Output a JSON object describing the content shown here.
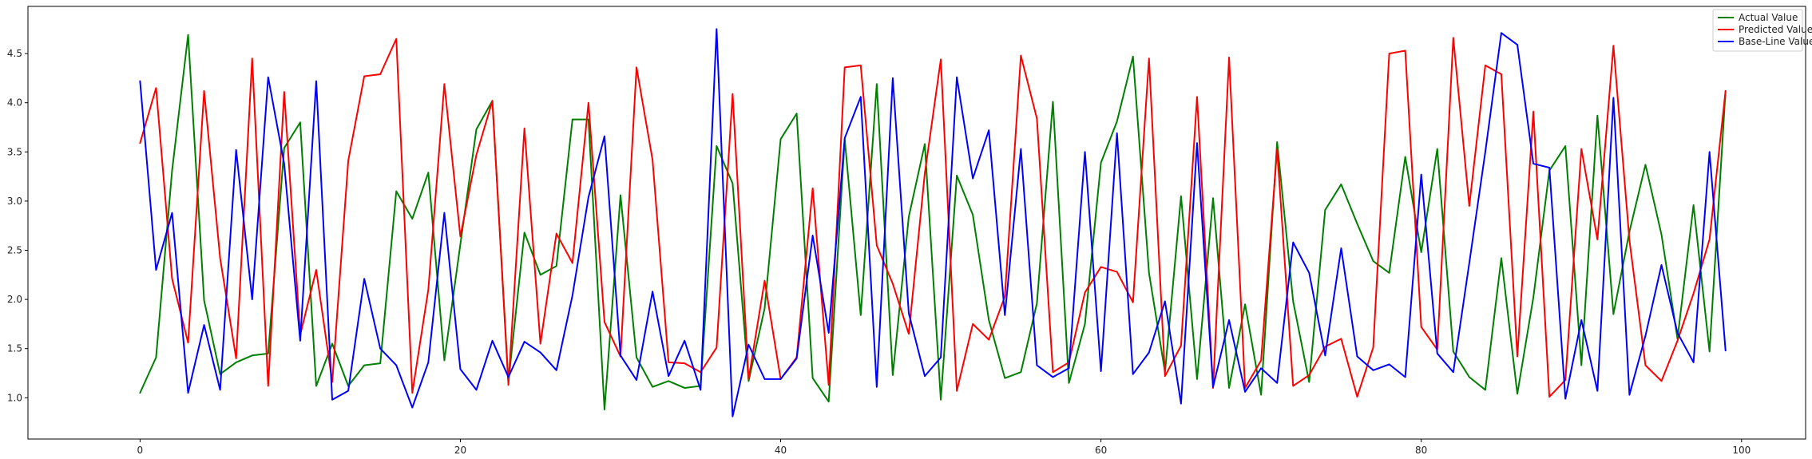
{
  "chart_data": {
    "type": "line",
    "xlim": [
      -7,
      104
    ],
    "ylim": [
      0.58,
      4.98
    ],
    "xticks": [
      0,
      20,
      40,
      60,
      80,
      100
    ],
    "yticks": [
      1.0,
      1.5,
      2.0,
      2.5,
      3.0,
      3.5,
      4.0,
      4.5
    ],
    "grid": false,
    "legend_position": "top-right",
    "series": [
      {
        "name": "Actual Value",
        "color": "#008000",
        "values": [
          1.05,
          1.41,
          3.31,
          4.69,
          1.99,
          1.24,
          1.36,
          1.43,
          1.45,
          3.54,
          3.8,
          1.12,
          1.55,
          1.12,
          1.33,
          1.35,
          3.1,
          2.82,
          3.29,
          1.38,
          2.56,
          3.73,
          4.02,
          1.16,
          2.68,
          2.25,
          2.34,
          3.83,
          3.83,
          0.88,
          3.06,
          1.41,
          1.11,
          1.17,
          1.1,
          1.12,
          3.56,
          3.18,
          1.17,
          1.91,
          3.63,
          3.89,
          1.2,
          0.96,
          3.63,
          1.84,
          4.19,
          1.23,
          2.84,
          3.58,
          0.98,
          3.26,
          2.86,
          1.79,
          1.2,
          1.26,
          1.96,
          4.01,
          1.15,
          1.75,
          3.39,
          3.81,
          4.47,
          2.27,
          1.26,
          3.05,
          1.19,
          3.03,
          1.1,
          1.95,
          1.03,
          3.6,
          1.98,
          1.16,
          2.91,
          3.17,
          2.77,
          2.39,
          2.27,
          3.45,
          2.48,
          3.53,
          1.47,
          1.21,
          1.08,
          2.42,
          1.04,
          2.02,
          3.31,
          3.56,
          1.33,
          3.87,
          1.85,
          2.69,
          3.37,
          2.66,
          1.6,
          2.96,
          1.47,
          4.12
        ]
      },
      {
        "name": "Predicted Value",
        "color": "#ff0000",
        "values": [
          3.59,
          4.15,
          2.21,
          1.56,
          4.12,
          2.42,
          1.4,
          4.45,
          1.12,
          4.11,
          1.64,
          2.3,
          1.16,
          3.41,
          4.27,
          4.29,
          4.65,
          1.05,
          2.1,
          4.19,
          2.64,
          3.47,
          4.02,
          1.13,
          3.74,
          1.55,
          2.67,
          2.37,
          4.0,
          1.77,
          1.42,
          4.36,
          3.42,
          1.36,
          1.35,
          1.26,
          1.51,
          4.09,
          1.19,
          2.19,
          1.19,
          1.41,
          3.13,
          1.13,
          4.36,
          4.38,
          2.55,
          2.16,
          1.65,
          3.28,
          4.44,
          1.07,
          1.75,
          1.59,
          2.03,
          4.48,
          3.84,
          1.26,
          1.36,
          2.07,
          2.33,
          2.28,
          1.97,
          4.45,
          1.22,
          1.53,
          4.06,
          1.1,
          4.46,
          1.1,
          1.38,
          3.53,
          1.12,
          1.23,
          1.52,
          1.6,
          1.01,
          1.51,
          4.5,
          4.53,
          1.72,
          1.49,
          4.66,
          2.95,
          4.38,
          4.29,
          1.42,
          3.91,
          1.01,
          1.18,
          3.53,
          2.61,
          4.58,
          2.6,
          1.33,
          1.17,
          1.58,
          2.06,
          2.61,
          4.12
        ]
      },
      {
        "name": "Base-Line Value",
        "color": "#0000ff",
        "values": [
          4.22,
          2.3,
          2.88,
          1.05,
          1.74,
          1.08,
          3.52,
          2.0,
          4.26,
          3.38,
          1.58,
          4.22,
          0.98,
          1.07,
          2.21,
          1.5,
          1.33,
          0.9,
          1.36,
          2.88,
          1.29,
          1.08,
          1.58,
          1.21,
          1.57,
          1.46,
          1.28,
          2.04,
          3.04,
          3.66,
          1.43,
          1.18,
          2.08,
          1.22,
          1.58,
          1.08,
          4.75,
          0.81,
          1.54,
          1.19,
          1.19,
          1.4,
          2.65,
          1.66,
          3.64,
          4.06,
          1.11,
          4.25,
          1.86,
          1.22,
          1.41,
          4.26,
          3.23,
          3.72,
          1.84,
          3.53,
          1.33,
          1.21,
          1.3,
          3.5,
          1.27,
          3.69,
          1.24,
          1.46,
          1.98,
          0.94,
          3.59,
          1.11,
          1.79,
          1.06,
          1.3,
          1.15,
          2.58,
          2.27,
          1.43,
          2.52,
          1.42,
          1.28,
          1.34,
          1.21,
          3.27,
          1.45,
          1.26,
          2.37,
          3.5,
          4.71,
          4.59,
          3.38,
          3.34,
          0.99,
          1.79,
          1.07,
          4.05,
          1.03,
          1.63,
          2.35,
          1.66,
          1.36,
          3.5,
          1.48
        ]
      }
    ]
  }
}
